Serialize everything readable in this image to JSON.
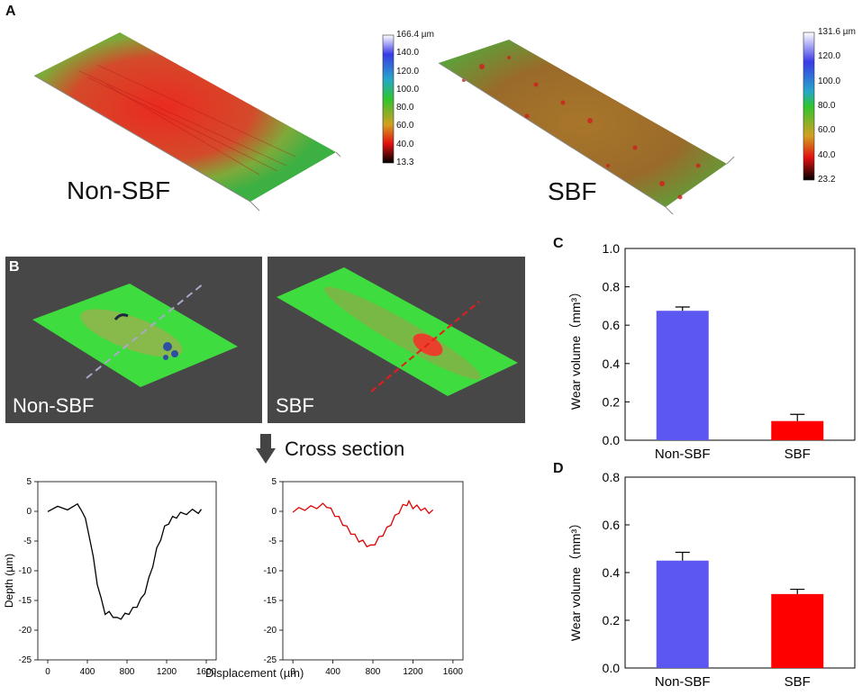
{
  "panel_a": {
    "label": "A",
    "left_caption": "Non-SBF",
    "right_caption": "SBF",
    "left_scale": {
      "ticks": [
        "166.4 µm",
        "140.0",
        "120.0",
        "100.0",
        "80.0",
        "60.0",
        "40.0",
        "13.3"
      ]
    },
    "right_scale": {
      "ticks": [
        "131.6 µm",
        "120.0",
        "100.0",
        "80.0",
        "60.0",
        "40.0",
        "23.2"
      ]
    }
  },
  "panel_b": {
    "label": "B",
    "left_caption": "Non-SBF",
    "right_caption": "SBF",
    "cross_section_label": "Cross section"
  },
  "panel_c": {
    "label": "C"
  },
  "panel_d": {
    "label": "D"
  },
  "colors": {
    "blue_bar": "#5b57f0",
    "red_bar": "#ff0000",
    "profile_black": "#000000",
    "profile_red": "#e00000",
    "surface_green": "#3fdc3f",
    "wear_red": "#e8402a"
  },
  "chart_data": [
    {
      "type": "line",
      "title": "",
      "xlabel": "",
      "ylabel": "Depth (µm)",
      "xlim": [
        -100,
        1700
      ],
      "ylim": [
        -25,
        5
      ],
      "xticks": [
        "0",
        "400",
        "800",
        "1200",
        "1600"
      ],
      "yticks": [
        "5",
        "0",
        "-5",
        "-10",
        "-15",
        "-20",
        "-25"
      ],
      "series": [
        {
          "name": "Non-SBF",
          "x": [
            0,
            100,
            200,
            300,
            340,
            380,
            420,
            460,
            500,
            540,
            580,
            620,
            660,
            700,
            740,
            780,
            820,
            860,
            900,
            940,
            980,
            1020,
            1060,
            1100,
            1140,
            1180,
            1220,
            1260,
            1300,
            1340,
            1400,
            1460,
            1520,
            1550
          ],
          "y": [
            0.3,
            0.5,
            0.6,
            0.9,
            0.5,
            -1.5,
            -4,
            -8,
            -12,
            -15,
            -17,
            -17.2,
            -17.5,
            -18.2,
            -17.8,
            -17.5,
            -17,
            -16.5,
            -15.8,
            -15,
            -13.5,
            -11.5,
            -9,
            -6.5,
            -4.5,
            -2.8,
            -1.8,
            -1.2,
            -0.8,
            -0.5,
            -0.2,
            0,
            0,
            0
          ]
        }
      ]
    },
    {
      "type": "line",
      "title": "",
      "xlabel": "Displacement (µm)",
      "ylabel": "",
      "xlim": [
        -100,
        1700
      ],
      "ylim": [
        -25,
        5
      ],
      "xticks": [
        "0",
        "400",
        "800",
        "1200",
        "1600"
      ],
      "yticks": [
        "5",
        "0",
        "-5",
        "-10",
        "-15",
        "-20",
        "-25"
      ],
      "series": [
        {
          "name": "SBF",
          "x": [
            0,
            60,
            120,
            180,
            240,
            300,
            340,
            380,
            420,
            460,
            500,
            540,
            580,
            620,
            660,
            700,
            740,
            780,
            820,
            860,
            900,
            940,
            980,
            1020,
            1060,
            1100,
            1140,
            1160,
            1200,
            1240,
            1280,
            1320,
            1360,
            1400
          ],
          "y": [
            0.2,
            0.3,
            0.5,
            0.6,
            0.8,
            1,
            1,
            0.2,
            -0.5,
            -1.2,
            -2,
            -2.8,
            -3.5,
            -4.2,
            -4.8,
            -5.2,
            -5.6,
            -6,
            -5.3,
            -4.6,
            -3.8,
            -3,
            -2,
            -1,
            0,
            0.8,
            1.3,
            1.4,
            0.8,
            0.7,
            0.5,
            0.2,
            0,
            -0.1
          ]
        }
      ]
    },
    {
      "type": "bar",
      "title": "",
      "ylabel": "Wear volume（mm³）",
      "categories": [
        "Non-SBF",
        "SBF"
      ],
      "values": [
        0.675,
        0.1
      ],
      "errors": [
        0.02,
        0.035
      ],
      "ylim": [
        0,
        1.0
      ],
      "yticks": [
        "0.0",
        "0.2",
        "0.4",
        "0.6",
        "0.8",
        "1.0"
      ]
    },
    {
      "type": "bar",
      "title": "",
      "ylabel": "Wear volume（mm³）",
      "categories": [
        "Non-SBF",
        "SBF"
      ],
      "values": [
        0.45,
        0.31
      ],
      "errors": [
        0.035,
        0.02
      ],
      "ylim": [
        0,
        0.8
      ],
      "yticks": [
        "0.0",
        "0.2",
        "0.4",
        "0.6",
        "0.8"
      ]
    }
  ]
}
